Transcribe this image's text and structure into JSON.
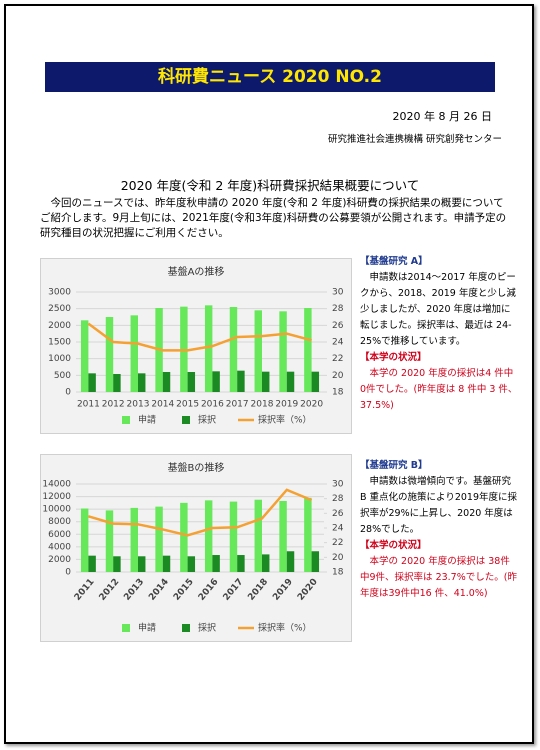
{
  "header": {
    "title": "科研費ニュース 2020 NO.2",
    "date": "2020 年 8 月 26 日",
    "org": "研究推進社会連携機構 研究創発センター"
  },
  "body": {
    "heading": "2020 年度(令和 2 年度)科研費採択結果概要について",
    "paragraph": "今回のニュースでは、昨年度秋申請の 2020 年度(令和 2 年度)科研費の採択結果の概要についてご紹介します。9月上旬には、2021年度(令和3年度)科研費の公募要領が公開されます。申請予定の研究種目の状況把握にご利用ください。"
  },
  "chart_data": [
    {
      "type": "bar",
      "title": "基盤Aの推移",
      "categories": [
        "2011",
        "2012",
        "2013",
        "2014",
        "2015",
        "2016",
        "2017",
        "2018",
        "2019",
        "2020"
      ],
      "series": [
        {
          "name": "申請",
          "color": "#66e85a",
          "values": [
            2150,
            2250,
            2300,
            2520,
            2560,
            2600,
            2550,
            2450,
            2420,
            2520
          ]
        },
        {
          "name": "採択",
          "color": "#1b8a22",
          "values": [
            560,
            540,
            560,
            600,
            600,
            620,
            640,
            610,
            610,
            610
          ]
        },
        {
          "name": "採択率（%）",
          "color": "#f5a032",
          "axis": "y2",
          "type": "line",
          "values": [
            26.2,
            24,
            23.8,
            23,
            23,
            23.5,
            24.6,
            24.7,
            25,
            24.2
          ]
        }
      ],
      "ylim": [
        0,
        3000
      ],
      "yticks": [
        0,
        500,
        1000,
        1500,
        2000,
        2500,
        3000
      ],
      "y2lim": [
        18,
        30
      ],
      "y2ticks": [
        18,
        20,
        22,
        24,
        26,
        28,
        30
      ],
      "grid": true
    },
    {
      "type": "bar",
      "title": "基盤Bの推移",
      "categories": [
        "2011",
        "2012",
        "2013",
        "2014",
        "2015",
        "2016",
        "2017",
        "2018",
        "2019",
        "2020"
      ],
      "series": [
        {
          "name": "申請",
          "color": "#66e85a",
          "values": [
            10100,
            9800,
            10200,
            10400,
            11000,
            11400,
            11200,
            11500,
            11300,
            11800
          ]
        },
        {
          "name": "採択",
          "color": "#1b8a22",
          "values": [
            2600,
            2500,
            2500,
            2600,
            2500,
            2700,
            2700,
            2800,
            3300,
            3300
          ]
        },
        {
          "name": "採択率（%）",
          "color": "#f5a032",
          "axis": "y2",
          "type": "line",
          "values": [
            25.6,
            24.6,
            24.5,
            23.8,
            23,
            24,
            24.1,
            25.3,
            29.2,
            27.8
          ]
        }
      ],
      "ylim": [
        0,
        14000
      ],
      "yticks": [
        0,
        2000,
        4000,
        6000,
        8000,
        10000,
        12000,
        14000
      ],
      "y2lim": [
        18,
        30
      ],
      "y2ticks": [
        18,
        20,
        22,
        24,
        26,
        28,
        30
      ],
      "grid": true,
      "rotate_labels": true
    }
  ],
  "sidebar": [
    {
      "heading": "【基盤研究 A】",
      "text": "申請数は2014～2017 年度のピークから、2018、2019 年度と少し減少しましたが、2020 年度は増加に転じました。採択率は、最近は 24-25%で推移しています。",
      "status_heading": "【本学の状況】",
      "status_text": "本学の 2020 年度の採択は4 件中0件でした。(昨年度は 8 件中 3 件、37.5%)"
    },
    {
      "heading": "【基盤研究 B】",
      "text": "申請数は微増傾向です。基盤研究 B 重点化の施策により2019年度に採択率が29%に上昇し、2020 年度は 28%でした。",
      "status_heading": "【本学の状況】",
      "status_text": "本学の 2020 年度の採択は 38件中9件、採択率は 23.7%でした。(昨年度は39件中16 件、41.0%)"
    }
  ]
}
